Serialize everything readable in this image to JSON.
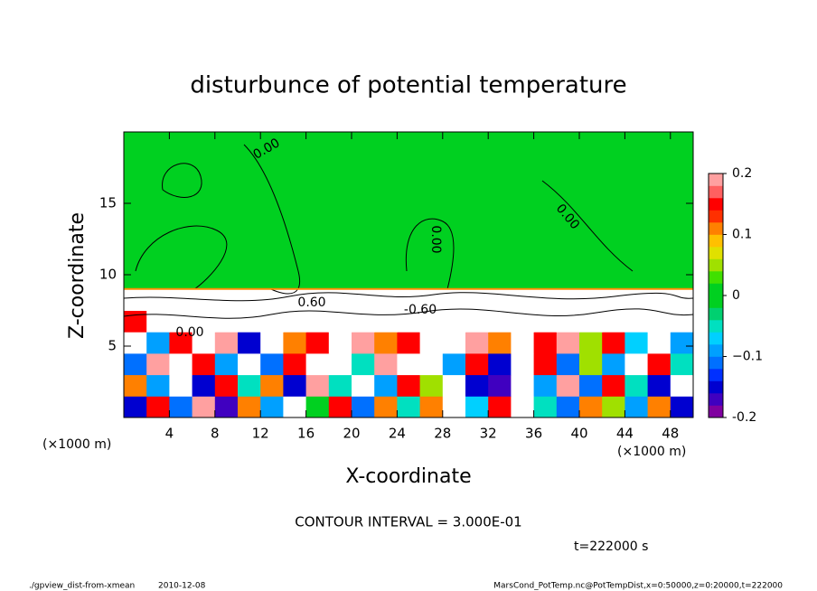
{
  "chart_data": {
    "type": "heatmap",
    "title": "disturbunce of potential temperature",
    "xlabel": "X-coordinate",
    "ylabel": "Z-coordinate",
    "xunit_left": "(×1000 m)",
    "xunit_right": "(×1000 m)",
    "xlim": [
      0,
      50
    ],
    "ylim": [
      0,
      20
    ],
    "xticks": [
      4,
      8,
      12,
      16,
      20,
      24,
      28,
      32,
      36,
      40,
      44,
      48
    ],
    "yticks": [
      5,
      10,
      15
    ],
    "x_edges": [
      0,
      2,
      4,
      6,
      8,
      10,
      12,
      14,
      16,
      18,
      20,
      22,
      24,
      26,
      28,
      30,
      32,
      34,
      36,
      38,
      40,
      42,
      44,
      46,
      48,
      50
    ],
    "z_edges": [
      0,
      1.5,
      3,
      4.5,
      6,
      7.5,
      9,
      20
    ],
    "values": [
      [
        -0.15,
        0.15,
        -0.12,
        0.18,
        -0.18,
        0.12,
        -0.1,
        0.22,
        0.02,
        0.15,
        -0.12,
        0.1,
        -0.05,
        0.12,
        0.22,
        -0.08,
        0.15,
        0.25,
        -0.05,
        -0.12,
        0.1,
        0.05,
        -0.1,
        0.12,
        -0.15
      ],
      [
        0.1,
        -0.1,
        0.2,
        -0.15,
        0.15,
        -0.05,
        0.12,
        -0.15,
        0.18,
        -0.05,
        0.2,
        -0.1,
        0.15,
        0.05,
        0.25,
        -0.15,
        -0.18,
        0.2,
        -0.1,
        0.18,
        -0.12,
        0.15,
        -0.05,
        -0.15,
        0.2
      ],
      [
        -0.12,
        0.18,
        0.22,
        0.15,
        -0.1,
        0.2,
        -0.12,
        0.15,
        0.25,
        0.28,
        -0.05,
        0.18,
        0.22,
        0.25,
        -0.1,
        0.15,
        -0.15,
        0.22,
        0.15,
        -0.12,
        0.05,
        -0.1,
        0.2,
        0.15,
        -0.05
      ],
      [
        0.2,
        -0.1,
        0.15,
        0.25,
        0.18,
        -0.15,
        0.2,
        0.12,
        0.15,
        0.22,
        0.18,
        0.1,
        0.15,
        0.2,
        0.25,
        0.18,
        0.12,
        0.2,
        0.15,
        0.18,
        0.05,
        0.15,
        -0.08,
        0.2,
        -0.1
      ],
      [
        0.15,
        0.22,
        0.25,
        0.28,
        0.2,
        0.25,
        0.3,
        0.22,
        0.25,
        0.3,
        0.28,
        0.25,
        0.3,
        0.28,
        0.25,
        0.3,
        0.22,
        0.25,
        0.3,
        0.28,
        0.25,
        0.22,
        0.28,
        0.3,
        0.25
      ],
      [
        0.3,
        0.28,
        0.3,
        0.32,
        0.3,
        0.35,
        0.3,
        0.28,
        0.32,
        0.3,
        0.35,
        0.3,
        0.32,
        0.3,
        0.28,
        0.3,
        0.32,
        0.35,
        0.3,
        0.3,
        0.28,
        0.3,
        0.32,
        0.3,
        0.3
      ],
      [
        0,
        0,
        0,
        0,
        0,
        0,
        0,
        0,
        0,
        0,
        0,
        0,
        0,
        0,
        0,
        0,
        0,
        0,
        0,
        0,
        0,
        0,
        0,
        0,
        0
      ]
    ],
    "clim": [
      -0.2,
      0.2
    ],
    "cticks": [
      -0.2,
      {
        "value": -0.1,
        "label": "−0.1"
      },
      0,
      0.1,
      0.2
    ],
    "colormap": [
      "#8000a0",
      "#4000c0",
      "#0000d0",
      "#0030ff",
      "#0070ff",
      "#00a0ff",
      "#00d0ff",
      "#00e0c0",
      "#00d070",
      "#00d020",
      "#00d020",
      "#40e000",
      "#a0e000",
      "#e0e000",
      "#ffc000",
      "#ff8000",
      "#ff3000",
      "#ff0000",
      "#ff6060",
      "#ffa0a0"
    ],
    "over_color": "#ffffff",
    "contour_labels": [
      "0.00",
      "0.00",
      "0.00",
      "0.00",
      "-0.60",
      "0.60"
    ],
    "contour_interval": "CONTOUR INTERVAL = 3.000E-01",
    "time_label": "t=222000 s",
    "footer_left": "./gpview_dist-from-xmean",
    "footer_date": "2010-12-08",
    "footer_right": "MarsCond_PotTemp.nc@PotTempDist,x=0:50000,z=0:20000,t=222000"
  }
}
